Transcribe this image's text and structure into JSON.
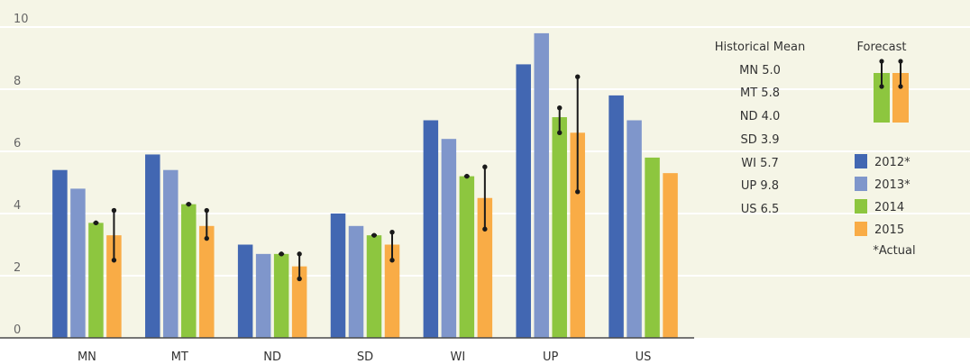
{
  "chart_data": {
    "type": "bar",
    "categories": [
      "MN",
      "MT",
      "ND",
      "SD",
      "WI",
      "UP",
      "US"
    ],
    "series": [
      {
        "name": "2012*",
        "color": "#4267B2",
        "values": [
          5.4,
          5.9,
          3.0,
          4.0,
          7.0,
          8.8,
          7.8
        ]
      },
      {
        "name": "2013*",
        "color": "#7F96CB",
        "values": [
          4.8,
          5.4,
          2.7,
          3.6,
          6.4,
          9.8,
          7.0
        ]
      },
      {
        "name": "2014",
        "color": "#8DC63F",
        "values": [
          3.7,
          4.3,
          2.7,
          3.3,
          5.2,
          7.1,
          5.8
        ]
      },
      {
        "name": "2015",
        "color": "#F9AC46",
        "values": [
          3.3,
          3.6,
          2.3,
          3.0,
          4.5,
          6.6,
          5.3
        ]
      }
    ],
    "forecast_ranges": {
      "2014": [
        [
          3.7,
          3.7
        ],
        [
          4.3,
          4.3
        ],
        [
          2.7,
          2.7
        ],
        [
          3.3,
          3.3
        ],
        [
          5.2,
          5.2
        ],
        [
          6.6,
          7.4
        ],
        null
      ],
      "2015": [
        [
          2.5,
          4.1
        ],
        [
          3.2,
          4.1
        ],
        [
          1.9,
          2.7
        ],
        [
          2.5,
          3.4
        ],
        [
          3.5,
          5.5
        ],
        [
          4.7,
          8.4
        ],
        null
      ]
    },
    "ylim": [
      0,
      10.5
    ],
    "yticks": [
      "0",
      "2",
      "4",
      "6",
      "8",
      "10"
    ],
    "grid": true,
    "xlabel": "",
    "ylabel": "",
    "title": ""
  },
  "historical_mean": {
    "title": "Historical Mean",
    "entries": [
      "MN 5.0",
      "MT 5.8",
      "ND 4.0",
      "SD 3.9",
      "WI 5.7",
      "UP 9.8",
      "US 6.5"
    ]
  },
  "forecast_legend": {
    "label": "Forecast"
  },
  "legend": {
    "items": [
      "2012*",
      "2013*",
      "2014",
      "2015"
    ],
    "note": "*Actual"
  },
  "colors": {
    "panel_background": "#F5F5E6",
    "grid": "#FFFFFF",
    "axis": "#4A4A4A",
    "whisker": "#1A1A1A"
  }
}
